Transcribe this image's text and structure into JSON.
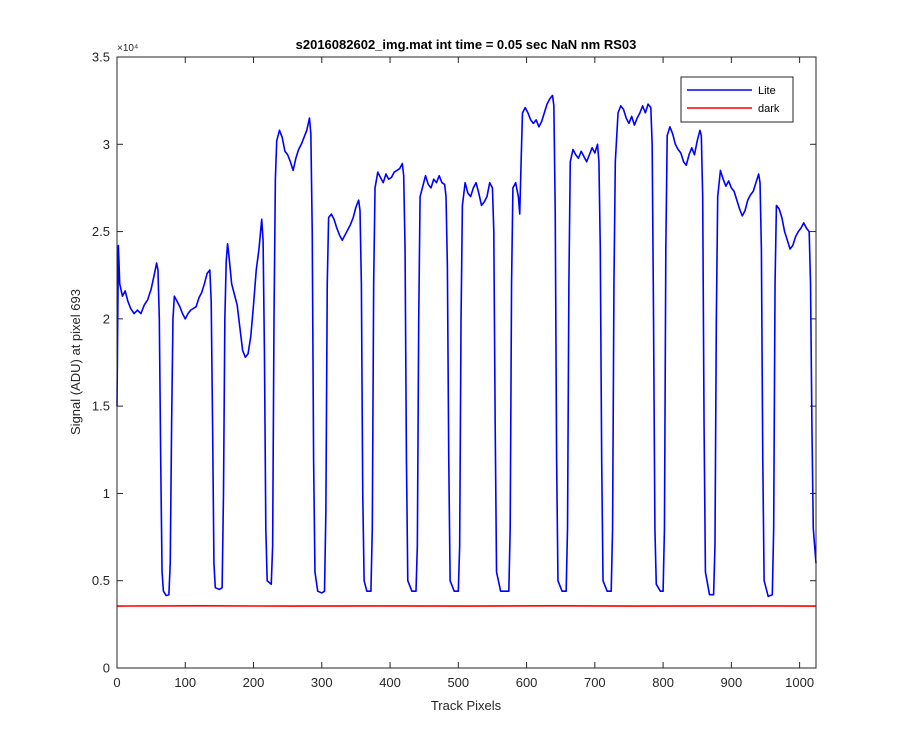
{
  "chart_data": {
    "type": "line",
    "title": "s2016082602_img.mat int time = 0.05 sec  NaN nm RS03",
    "xlabel": "Track Pixels",
    "ylabel": "Signal (ADU) at pixel 693",
    "xlim": [
      0,
      1024
    ],
    "ylim": [
      0,
      35000
    ],
    "x_ticks": [
      0,
      100,
      200,
      300,
      400,
      500,
      600,
      700,
      800,
      900,
      1000
    ],
    "x_tick_labels": [
      "0",
      "100",
      "200",
      "300",
      "400",
      "500",
      "600",
      "700",
      "800",
      "900",
      "1000"
    ],
    "y_ticks": [
      0,
      5000,
      10000,
      15000,
      20000,
      25000,
      30000,
      35000
    ],
    "y_tick_labels": [
      "0",
      "0.5",
      "1",
      "1.5",
      "2",
      "2.5",
      "3",
      "3.5"
    ],
    "y_exponent_label": "×10⁴",
    "legend_position": "top-right",
    "series": [
      {
        "name": "Lite",
        "color": "#0000ff",
        "points": [
          [
            0,
            15000
          ],
          [
            2,
            24200
          ],
          [
            4,
            22000
          ],
          [
            8,
            21300
          ],
          [
            12,
            21600
          ],
          [
            16,
            21000
          ],
          [
            20,
            20600
          ],
          [
            25,
            20300
          ],
          [
            30,
            20500
          ],
          [
            35,
            20300
          ],
          [
            40,
            20800
          ],
          [
            45,
            21100
          ],
          [
            50,
            21700
          ],
          [
            55,
            22600
          ],
          [
            58,
            23200
          ],
          [
            60,
            22800
          ],
          [
            62,
            20000
          ],
          [
            64,
            12000
          ],
          [
            66,
            5500
          ],
          [
            68,
            4400
          ],
          [
            72,
            4150
          ],
          [
            76,
            4200
          ],
          [
            78,
            6000
          ],
          [
            80,
            14000
          ],
          [
            82,
            20000
          ],
          [
            84,
            21300
          ],
          [
            88,
            21000
          ],
          [
            92,
            20700
          ],
          [
            96,
            20300
          ],
          [
            100,
            20000
          ],
          [
            104,
            20300
          ],
          [
            108,
            20500
          ],
          [
            112,
            20600
          ],
          [
            116,
            20700
          ],
          [
            120,
            21200
          ],
          [
            124,
            21500
          ],
          [
            128,
            22000
          ],
          [
            132,
            22600
          ],
          [
            136,
            22800
          ],
          [
            138,
            21000
          ],
          [
            140,
            14000
          ],
          [
            142,
            6000
          ],
          [
            144,
            4600
          ],
          [
            150,
            4500
          ],
          [
            154,
            4600
          ],
          [
            156,
            10000
          ],
          [
            158,
            20000
          ],
          [
            160,
            23300
          ],
          [
            162,
            24300
          ],
          [
            164,
            23600
          ],
          [
            168,
            22000
          ],
          [
            172,
            21400
          ],
          [
            176,
            20800
          ],
          [
            180,
            19500
          ],
          [
            184,
            18200
          ],
          [
            188,
            17800
          ],
          [
            192,
            18000
          ],
          [
            196,
            19000
          ],
          [
            200,
            20800
          ],
          [
            204,
            22800
          ],
          [
            208,
            24000
          ],
          [
            212,
            25700
          ],
          [
            214,
            24500
          ],
          [
            216,
            18000
          ],
          [
            218,
            8000
          ],
          [
            220,
            5000
          ],
          [
            226,
            4800
          ],
          [
            228,
            7000
          ],
          [
            230,
            20000
          ],
          [
            232,
            28000
          ],
          [
            234,
            30200
          ],
          [
            238,
            30800
          ],
          [
            242,
            30400
          ],
          [
            246,
            29600
          ],
          [
            250,
            29400
          ],
          [
            254,
            29000
          ],
          [
            258,
            28500
          ],
          [
            262,
            29200
          ],
          [
            266,
            29700
          ],
          [
            270,
            30000
          ],
          [
            274,
            30400
          ],
          [
            278,
            30800
          ],
          [
            282,
            31500
          ],
          [
            284,
            30600
          ],
          [
            286,
            25000
          ],
          [
            288,
            12000
          ],
          [
            290,
            5500
          ],
          [
            294,
            4400
          ],
          [
            300,
            4300
          ],
          [
            304,
            4400
          ],
          [
            306,
            9000
          ],
          [
            308,
            22000
          ],
          [
            310,
            25800
          ],
          [
            314,
            26000
          ],
          [
            318,
            25700
          ],
          [
            322,
            25200
          ],
          [
            326,
            24800
          ],
          [
            330,
            24500
          ],
          [
            334,
            24800
          ],
          [
            338,
            25100
          ],
          [
            342,
            25400
          ],
          [
            346,
            25800
          ],
          [
            350,
            26400
          ],
          [
            354,
            26800
          ],
          [
            356,
            26200
          ],
          [
            358,
            22000
          ],
          [
            360,
            10000
          ],
          [
            362,
            5000
          ],
          [
            366,
            4400
          ],
          [
            372,
            4400
          ],
          [
            374,
            8000
          ],
          [
            376,
            22000
          ],
          [
            378,
            27500
          ],
          [
            382,
            28400
          ],
          [
            386,
            28100
          ],
          [
            390,
            27800
          ],
          [
            394,
            28300
          ],
          [
            398,
            28000
          ],
          [
            402,
            28100
          ],
          [
            406,
            28400
          ],
          [
            410,
            28500
          ],
          [
            414,
            28600
          ],
          [
            418,
            28900
          ],
          [
            420,
            28200
          ],
          [
            422,
            24000
          ],
          [
            424,
            12000
          ],
          [
            426,
            5000
          ],
          [
            432,
            4400
          ],
          [
            438,
            4400
          ],
          [
            440,
            7000
          ],
          [
            442,
            20000
          ],
          [
            444,
            27000
          ],
          [
            448,
            27600
          ],
          [
            452,
            28200
          ],
          [
            456,
            27700
          ],
          [
            460,
            27500
          ],
          [
            464,
            28000
          ],
          [
            468,
            27800
          ],
          [
            472,
            28200
          ],
          [
            476,
            27800
          ],
          [
            480,
            27700
          ],
          [
            482,
            27000
          ],
          [
            484,
            23000
          ],
          [
            486,
            12000
          ],
          [
            488,
            5000
          ],
          [
            494,
            4400
          ],
          [
            500,
            4400
          ],
          [
            502,
            7000
          ],
          [
            504,
            20000
          ],
          [
            506,
            26500
          ],
          [
            510,
            27800
          ],
          [
            514,
            27200
          ],
          [
            518,
            27000
          ],
          [
            522,
            27500
          ],
          [
            526,
            27800
          ],
          [
            530,
            27200
          ],
          [
            534,
            26500
          ],
          [
            538,
            26700
          ],
          [
            542,
            27000
          ],
          [
            546,
            27800
          ],
          [
            550,
            27500
          ],
          [
            552,
            25000
          ],
          [
            554,
            14000
          ],
          [
            556,
            5500
          ],
          [
            562,
            4400
          ],
          [
            570,
            4400
          ],
          [
            574,
            4400
          ],
          [
            576,
            8000
          ],
          [
            578,
            22000
          ],
          [
            580,
            27500
          ],
          [
            584,
            27800
          ],
          [
            588,
            27000
          ],
          [
            590,
            26000
          ],
          [
            592,
            29000
          ],
          [
            594,
            31800
          ],
          [
            598,
            32100
          ],
          [
            602,
            31800
          ],
          [
            606,
            31400
          ],
          [
            610,
            31200
          ],
          [
            614,
            31400
          ],
          [
            618,
            31000
          ],
          [
            622,
            31300
          ],
          [
            626,
            31800
          ],
          [
            630,
            32300
          ],
          [
            634,
            32600
          ],
          [
            638,
            32800
          ],
          [
            640,
            32200
          ],
          [
            642,
            26000
          ],
          [
            644,
            12000
          ],
          [
            646,
            5000
          ],
          [
            652,
            4400
          ],
          [
            658,
            4400
          ],
          [
            660,
            8000
          ],
          [
            662,
            22000
          ],
          [
            664,
            29000
          ],
          [
            668,
            29700
          ],
          [
            672,
            29400
          ],
          [
            676,
            29200
          ],
          [
            680,
            29600
          ],
          [
            684,
            29300
          ],
          [
            688,
            29000
          ],
          [
            692,
            29400
          ],
          [
            696,
            29800
          ],
          [
            700,
            29500
          ],
          [
            704,
            30000
          ],
          [
            706,
            29000
          ],
          [
            708,
            24000
          ],
          [
            710,
            12000
          ],
          [
            712,
            5000
          ],
          [
            718,
            4400
          ],
          [
            724,
            4400
          ],
          [
            726,
            8000
          ],
          [
            728,
            22000
          ],
          [
            730,
            29000
          ],
          [
            734,
            31800
          ],
          [
            738,
            32200
          ],
          [
            742,
            32000
          ],
          [
            746,
            31500
          ],
          [
            750,
            31200
          ],
          [
            754,
            31600
          ],
          [
            758,
            31100
          ],
          [
            762,
            31500
          ],
          [
            766,
            31800
          ],
          [
            770,
            32200
          ],
          [
            774,
            31800
          ],
          [
            778,
            32300
          ],
          [
            782,
            32100
          ],
          [
            784,
            30000
          ],
          [
            786,
            20000
          ],
          [
            788,
            8000
          ],
          [
            790,
            4800
          ],
          [
            796,
            4400
          ],
          [
            800,
            4400
          ],
          [
            802,
            8000
          ],
          [
            804,
            24000
          ],
          [
            806,
            30500
          ],
          [
            810,
            31000
          ],
          [
            814,
            30600
          ],
          [
            818,
            30000
          ],
          [
            822,
            29700
          ],
          [
            826,
            29500
          ],
          [
            830,
            29000
          ],
          [
            834,
            28800
          ],
          [
            838,
            29400
          ],
          [
            842,
            29800
          ],
          [
            846,
            29400
          ],
          [
            850,
            30200
          ],
          [
            854,
            30800
          ],
          [
            856,
            30500
          ],
          [
            858,
            27000
          ],
          [
            860,
            14000
          ],
          [
            862,
            5500
          ],
          [
            868,
            4200
          ],
          [
            874,
            4200
          ],
          [
            876,
            7000
          ],
          [
            878,
            20000
          ],
          [
            880,
            27000
          ],
          [
            884,
            28500
          ],
          [
            888,
            28000
          ],
          [
            892,
            27600
          ],
          [
            896,
            27900
          ],
          [
            900,
            27500
          ],
          [
            904,
            27300
          ],
          [
            908,
            26800
          ],
          [
            912,
            26300
          ],
          [
            916,
            25900
          ],
          [
            920,
            26200
          ],
          [
            924,
            26800
          ],
          [
            928,
            27100
          ],
          [
            932,
            27300
          ],
          [
            936,
            27800
          ],
          [
            940,
            28300
          ],
          [
            942,
            27800
          ],
          [
            944,
            24000
          ],
          [
            946,
            12000
          ],
          [
            948,
            5000
          ],
          [
            954,
            4100
          ],
          [
            960,
            4200
          ],
          [
            962,
            8000
          ],
          [
            964,
            22000
          ],
          [
            966,
            26500
          ],
          [
            970,
            26300
          ],
          [
            974,
            25800
          ],
          [
            978,
            25000
          ],
          [
            982,
            24500
          ],
          [
            986,
            24000
          ],
          [
            990,
            24200
          ],
          [
            994,
            24700
          ],
          [
            998,
            25000
          ],
          [
            1002,
            25200
          ],
          [
            1006,
            25500
          ],
          [
            1010,
            25200
          ],
          [
            1014,
            25000
          ],
          [
            1016,
            22000
          ],
          [
            1018,
            14000
          ],
          [
            1020,
            8000
          ],
          [
            1024,
            6000
          ]
        ]
      },
      {
        "name": "dark",
        "color": "#ff0000",
        "points": [
          [
            0,
            3550
          ],
          [
            128,
            3560
          ],
          [
            256,
            3545
          ],
          [
            384,
            3555
          ],
          [
            512,
            3550
          ],
          [
            640,
            3560
          ],
          [
            768,
            3550
          ],
          [
            896,
            3555
          ],
          [
            1024,
            3550
          ]
        ]
      }
    ]
  }
}
